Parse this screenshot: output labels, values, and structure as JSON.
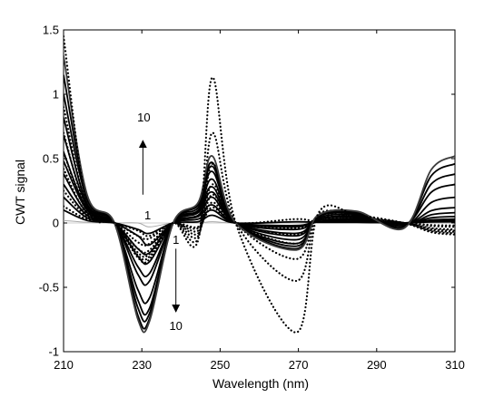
{
  "chart_data": {
    "type": "line",
    "title": "",
    "xlabel": "Wavelength (nm)",
    "ylabel": "CWT signal",
    "xlim": [
      210,
      310
    ],
    "ylim": [
      -1,
      1.5
    ],
    "xticks": [
      210,
      230,
      250,
      270,
      290,
      310
    ],
    "yticks": [
      -1,
      -0.5,
      0,
      0.5,
      1,
      1.5
    ],
    "xtick_labels": [
      "210",
      "230",
      "250",
      "270",
      "290",
      "310"
    ],
    "ytick_labels": [
      "-1",
      "-0.5",
      "0",
      "0.5",
      "1",
      "1.5"
    ],
    "grid": false,
    "legend": "none",
    "zero_crossings_nm": [
      223,
      238,
      254,
      297
    ],
    "annotations": [
      {
        "text": "10",
        "x": 230.5,
        "y": 0.82,
        "arrow": "up"
      },
      {
        "text": "1",
        "x": 231.5,
        "y": 0.06
      },
      {
        "text": "1",
        "x": 238.7,
        "y": -0.13
      },
      {
        "text": "10",
        "x": 238.7,
        "y": -0.8,
        "arrow": "down"
      }
    ],
    "series": [
      {
        "style": "solid-light",
        "color": "#a8a8a8",
        "values": [
          0.02,
          0.005,
          0,
          -0.03,
          0,
          0.01,
          0,
          0.005,
          0.005,
          0,
          0
        ]
      },
      {
        "style": "solid",
        "color": "#000000",
        "values": [
          0.1,
          0.02,
          -0.05,
          -0.08,
          0.01,
          0.06,
          0.01,
          0.005,
          0.005,
          0,
          0.01
        ]
      },
      {
        "style": "dotted",
        "color": "#000000",
        "values": [
          0.13,
          0.03,
          -0.06,
          -0.1,
          -0.03,
          0.12,
          0.03,
          0.01,
          0.01,
          0,
          -0.02
        ]
      },
      {
        "style": "solid",
        "color": "#000000",
        "values": [
          0.2,
          0.04,
          -0.1,
          -0.17,
          0.03,
          0.1,
          -0.02,
          0.01,
          0.01,
          0,
          0.02
        ]
      },
      {
        "style": "dotted",
        "color": "#000000",
        "values": [
          0.25,
          0.05,
          -0.1,
          -0.12,
          -0.04,
          0.16,
          -0.04,
          0.02,
          0.01,
          0,
          -0.03
        ]
      },
      {
        "style": "solid",
        "color": "#000000",
        "values": [
          0.3,
          0.06,
          -0.2,
          -0.23,
          0.05,
          0.14,
          -0.03,
          0.02,
          0.02,
          0,
          0.03
        ]
      },
      {
        "style": "dotted",
        "color": "#000000",
        "values": [
          0.42,
          0.07,
          -0.15,
          -0.16,
          -0.06,
          0.22,
          -0.09,
          0.03,
          0.02,
          0,
          -0.05
        ]
      },
      {
        "style": "solid",
        "color": "#000000",
        "values": [
          0.38,
          0.08,
          -0.26,
          -0.3,
          0.06,
          0.2,
          -0.05,
          0.02,
          0.03,
          0,
          0.05
        ]
      },
      {
        "style": "dotted",
        "color": "#000000",
        "values": [
          0.55,
          0.09,
          -0.2,
          -0.21,
          -0.08,
          0.3,
          -0.16,
          0.04,
          0.03,
          0,
          -0.06
        ]
      },
      {
        "style": "solid",
        "color": "#000000",
        "values": [
          0.48,
          0.1,
          -0.34,
          -0.39,
          0.08,
          0.24,
          -0.08,
          0.03,
          0.04,
          -0.01,
          0.08
        ]
      },
      {
        "style": "solid",
        "color": "#000000",
        "values": [
          0.55,
          0.11,
          -0.4,
          -0.45,
          0.09,
          0.28,
          -0.1,
          0.03,
          0.05,
          -0.01,
          0.12
        ]
      },
      {
        "style": "dotted",
        "color": "#000000",
        "values": [
          0.7,
          0.11,
          -0.23,
          -0.24,
          -0.1,
          0.46,
          -0.28,
          0.05,
          0.04,
          0,
          -0.07
        ]
      },
      {
        "style": "solid",
        "color": "#000000",
        "values": [
          0.68,
          0.13,
          -0.52,
          -0.58,
          0.1,
          0.34,
          -0.13,
          0.04,
          0.06,
          -0.02,
          0.2
        ]
      },
      {
        "style": "dotted",
        "color": "#000000",
        "values": [
          0.9,
          0.13,
          -0.25,
          -0.26,
          -0.12,
          0.7,
          -0.45,
          0.06,
          0.05,
          0,
          -0.08
        ]
      },
      {
        "style": "solid",
        "color": "#000000",
        "values": [
          0.82,
          0.15,
          -0.6,
          -0.66,
          0.12,
          0.4,
          -0.16,
          0.05,
          0.07,
          -0.02,
          0.3
        ]
      },
      {
        "style": "solid",
        "color": "#000000",
        "values": [
          1.0,
          0.18,
          -0.66,
          -0.7,
          0.14,
          0.44,
          -0.18,
          0.05,
          0.08,
          -0.03,
          0.38
        ]
      },
      {
        "style": "solid",
        "color": "#000000",
        "values": [
          1.15,
          0.2,
          -0.72,
          -0.74,
          0.15,
          0.47,
          -0.2,
          0.06,
          0.08,
          -0.03,
          0.46
        ]
      },
      {
        "style": "solid-dark",
        "color": "#3c3c3c",
        "values": [
          1.3,
          0.22,
          -0.75,
          -0.76,
          0.16,
          0.52,
          -0.21,
          0.06,
          0.09,
          -0.04,
          0.52
        ]
      },
      {
        "style": "dotted",
        "color": "#000000",
        "values": [
          1.45,
          0.14,
          -0.27,
          -0.28,
          -0.13,
          1.13,
          -0.85,
          0.07,
          0.06,
          0,
          -0.09
        ]
      }
    ]
  }
}
